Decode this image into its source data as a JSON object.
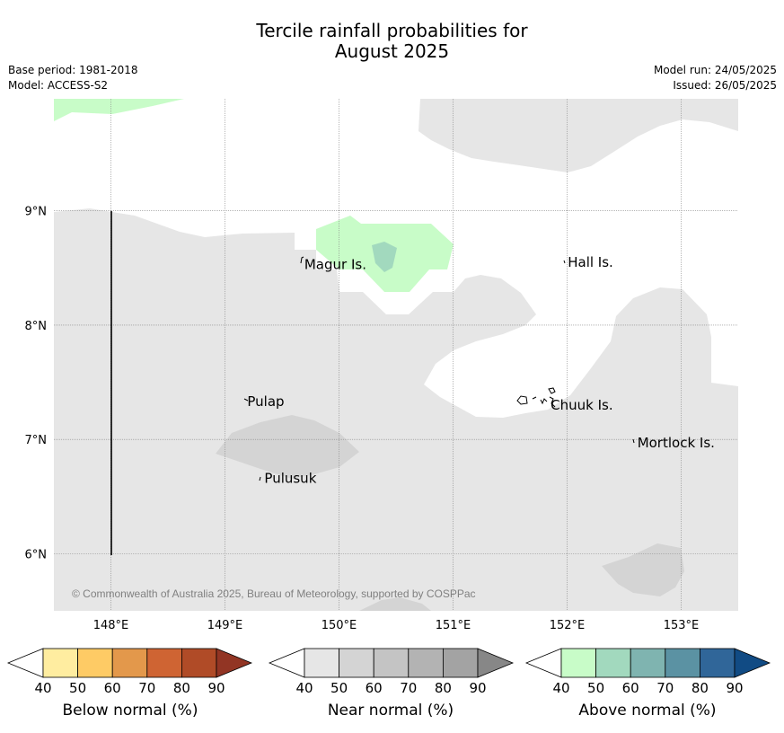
{
  "title": {
    "line1": "Tercile rainfall probabilities for",
    "line2": "August 2025"
  },
  "meta": {
    "base_period": "Base period: 1981-2018",
    "model": "Model: ACCESS-S2",
    "model_run": "Model run: 24/05/2025",
    "issued": "Issued: 26/05/2025"
  },
  "map": {
    "lon_range": [
      147.5,
      153.5
    ],
    "lat_range": [
      5.5,
      9.98
    ],
    "gridlines": true,
    "lon_ticks": [
      "148°E",
      "149°E",
      "150°E",
      "151°E",
      "152°E",
      "153°E"
    ],
    "lat_ticks": [
      "9°N",
      "8°N",
      "7°N",
      "6°N"
    ],
    "places": [
      {
        "name": "Magur Is.",
        "lon": 149.68,
        "lat": 8.53
      },
      {
        "name": "Hall Is.",
        "lon": 151.99,
        "lat": 8.55
      },
      {
        "name": "Pulap",
        "lon": 149.18,
        "lat": 7.33
      },
      {
        "name": "Chuuk Is.",
        "lon": 151.84,
        "lat": 7.3
      },
      {
        "name": "Mortlock Is.",
        "lon": 152.6,
        "lat": 6.97
      },
      {
        "name": "Pulusuk",
        "lon": 149.33,
        "lat": 6.66
      }
    ],
    "copyright": "© Commonwealth of Australia 2025, Bureau of Meteorology, supported by COSPPac",
    "colors": {
      "near_40": "#e6e6e6",
      "near_50": "#d4d4d4",
      "above_40": "#c8fcc8",
      "above_50": "#a2d9be",
      "grid": "#888888",
      "boundary": "#000000"
    }
  },
  "colorbars": {
    "ticks": [
      "40",
      "50",
      "60",
      "70",
      "80",
      "90"
    ],
    "below": {
      "label": "Below normal (%)",
      "colors": [
        "#ffeda0",
        "#fecb65",
        "#e3984b",
        "#cf6433",
        "#b04b27",
        "#923524"
      ]
    },
    "near": {
      "label": "Near normal (%)",
      "colors": [
        "#e6e6e6",
        "#d4d4d4",
        "#c4c4c4",
        "#b3b3b3",
        "#a3a3a3",
        "#878787"
      ]
    },
    "above": {
      "label": "Above normal (%)",
      "colors": [
        "#c8fcc8",
        "#a2d9be",
        "#7fb4b0",
        "#5b92a3",
        "#306699",
        "#114b84"
      ]
    }
  }
}
